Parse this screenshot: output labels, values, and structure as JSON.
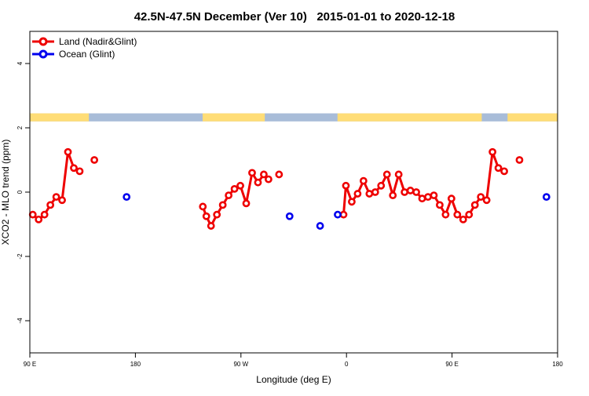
{
  "chart_data": {
    "type": "line",
    "title": "42.5N-47.5N December (Ver 10)   2015-01-01 to 2020-12-18",
    "xlabel": "Longitude (deg E)",
    "ylabel": "XCO2 - MLO trend (ppm)",
    "xlim": [
      90,
      540
    ],
    "ylim": [
      -5,
      5
    ],
    "x_ticks": [
      {
        "value": 90,
        "label": "90 E"
      },
      {
        "value": 180,
        "label": "180"
      },
      {
        "value": 270,
        "label": "90 W"
      },
      {
        "value": 360,
        "label": "0"
      },
      {
        "value": 450,
        "label": "90 E"
      },
      {
        "value": 540,
        "label": "180"
      }
    ],
    "y_ticks": [
      {
        "value": -4,
        "label": "-4"
      },
      {
        "value": -2,
        "label": "-2"
      },
      {
        "value": 0,
        "label": "0"
      },
      {
        "value": 2,
        "label": "2"
      },
      {
        "value": 4,
        "label": "4"
      }
    ],
    "legend_position": "top-left",
    "grid": false,
    "series": [
      {
        "name": "Land (Nadir&Glint)",
        "color": "#ee0000",
        "segments": [
          [
            [
              92.5,
              -0.7
            ],
            [
              97.5,
              -0.85
            ],
            [
              102.5,
              -0.7
            ],
            [
              107.5,
              -0.4
            ],
            [
              112.5,
              -0.15
            ],
            [
              117.5,
              -0.25
            ],
            [
              122.5,
              1.25
            ],
            [
              127.5,
              0.75
            ],
            [
              132.5,
              0.65
            ]
          ],
          [
            [
              145,
              1.0
            ]
          ],
          [
            [
              237.5,
              -0.45
            ],
            [
              240.5,
              -0.75
            ],
            [
              244.5,
              -1.05
            ],
            [
              249.5,
              -0.7
            ],
            [
              254.5,
              -0.4
            ],
            [
              259.5,
              -0.1
            ],
            [
              264.5,
              0.1
            ],
            [
              269.5,
              0.2
            ],
            [
              274.5,
              -0.35
            ],
            [
              279.5,
              0.6
            ],
            [
              284.5,
              0.3
            ],
            [
              289.5,
              0.55
            ],
            [
              293.5,
              0.4
            ]
          ],
          [
            [
              302.5,
              0.55
            ]
          ],
          [
            [
              357.5,
              -0.7
            ],
            [
              359.5,
              0.2
            ],
            [
              364.5,
              -0.3
            ],
            [
              369.5,
              -0.05
            ],
            [
              374.5,
              0.35
            ],
            [
              379.5,
              -0.05
            ],
            [
              384.5,
              0.0
            ],
            [
              389.5,
              0.2
            ],
            [
              394.5,
              0.55
            ],
            [
              399.5,
              -0.1
            ],
            [
              404.5,
              0.55
            ],
            [
              409.5,
              0.0
            ],
            [
              414.5,
              0.05
            ],
            [
              419.5,
              0.0
            ],
            [
              424.5,
              -0.2
            ],
            [
              429.5,
              -0.15
            ],
            [
              434.5,
              -0.1
            ],
            [
              439.5,
              -0.4
            ],
            [
              444.5,
              -0.7
            ],
            [
              449.5,
              -0.2
            ],
            [
              454.5,
              -0.7
            ],
            [
              459.5,
              -0.85
            ],
            [
              464.5,
              -0.7
            ],
            [
              469.5,
              -0.4
            ],
            [
              474.5,
              -0.15
            ],
            [
              479.5,
              -0.25
            ],
            [
              484.5,
              1.25
            ],
            [
              489.5,
              0.75
            ],
            [
              494.5,
              0.65
            ]
          ],
          [
            [
              507.5,
              1.0
            ]
          ]
        ]
      },
      {
        "name": "Ocean (Glint)",
        "color": "#0000ee",
        "segments": [
          [
            [
              172.5,
              -0.15
            ]
          ],
          [
            [
              311.5,
              -0.75
            ]
          ],
          [
            [
              337.5,
              -1.05
            ]
          ],
          [
            [
              352.5,
              -0.7
            ]
          ],
          [
            [
              530.5,
              -0.15
            ]
          ]
        ]
      }
    ],
    "land_mask_bar": {
      "y_range": [
        2.2,
        2.45
      ],
      "land_color": "#ffdd77",
      "ocean_color": "#a8bcd8",
      "land_segments": [
        [
          90,
          140
        ],
        [
          237,
          290
        ],
        [
          352,
          475
        ],
        [
          497,
          540
        ]
      ]
    }
  }
}
